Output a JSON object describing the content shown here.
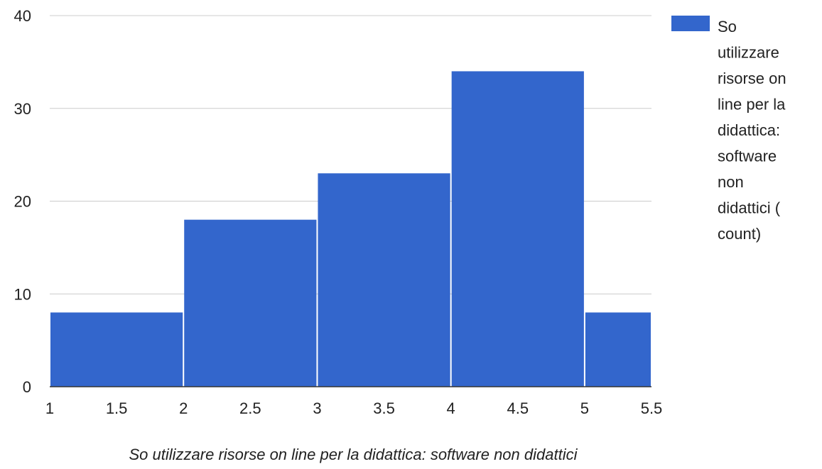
{
  "chart_data": {
    "type": "bar",
    "subtype": "histogram",
    "bins": [
      {
        "x_start": 1,
        "x_end": 2,
        "value": 8
      },
      {
        "x_start": 2,
        "x_end": 3,
        "value": 18
      },
      {
        "x_start": 3,
        "x_end": 4,
        "value": 23
      },
      {
        "x_start": 4,
        "x_end": 5,
        "value": 34
      },
      {
        "x_start": 5,
        "x_end": 5.5,
        "value": 8
      }
    ],
    "series": [
      {
        "name": "So utilizzare risorse on line per la didattica: software non didattici ( count)",
        "color": "#3366cc"
      }
    ],
    "xlabel": "So utilizzare risorse on line per la didattica: software non didattici",
    "ylabel": "",
    "xlim": [
      1,
      5.5
    ],
    "ylim": [
      0,
      40
    ],
    "x_ticks": [
      "1",
      "1.5",
      "2",
      "2.5",
      "3",
      "3.5",
      "4",
      "4.5",
      "5",
      "5.5"
    ],
    "y_ticks": [
      "0",
      "10",
      "20",
      "30",
      "40"
    ],
    "legend_lines": [
      "So",
      "utilizzare",
      "risorse on",
      "line per la",
      "didattica:",
      "software",
      "non",
      "didattici (",
      "count)"
    ],
    "legend_position": "right",
    "grid": true
  }
}
